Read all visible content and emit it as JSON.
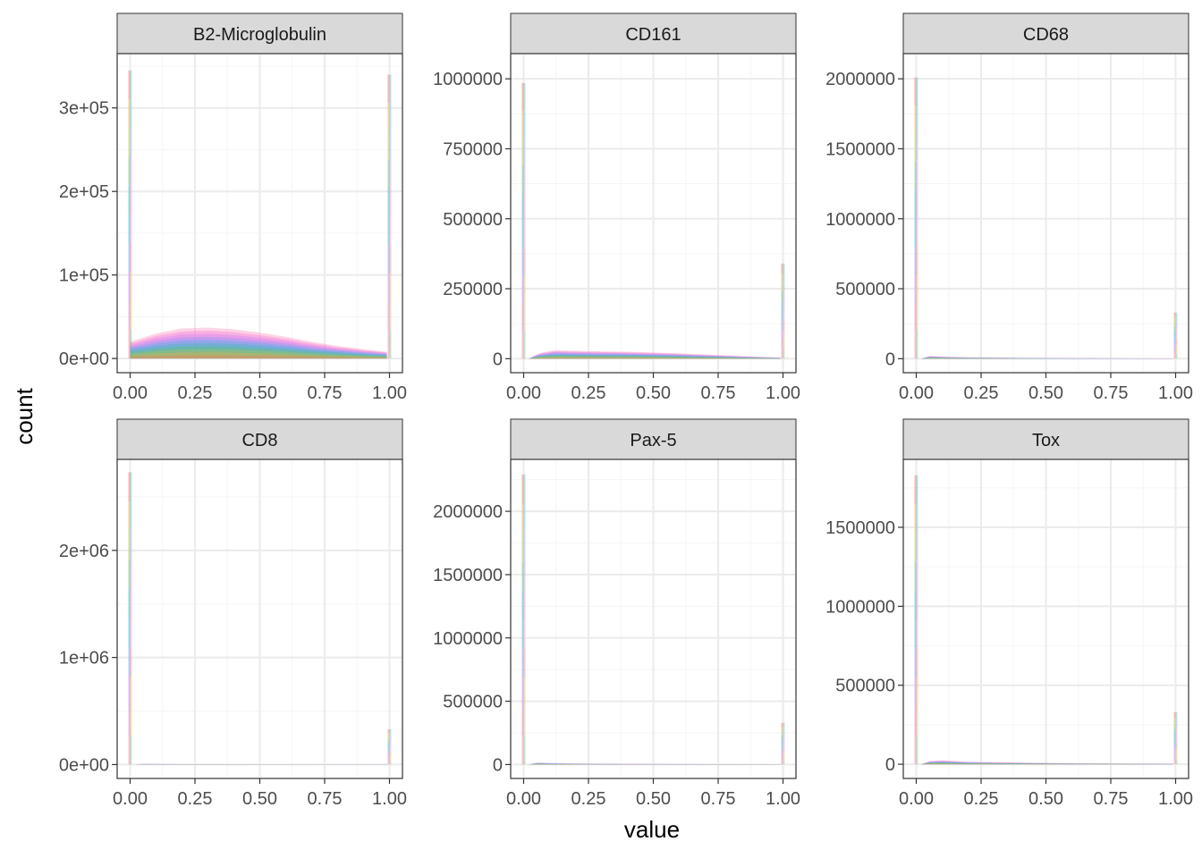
{
  "figure": {
    "xlabel": "value",
    "ylabel": "count"
  },
  "colors": {
    "strip_fill": "#D9D9D9",
    "panel_border": "#333333",
    "grid_major": "#EBEBEB",
    "grid_minor": "#F5F5F5",
    "tick_text": "#4D4D4D",
    "series": [
      "#F8766D",
      "#E7A93C",
      "#B6C24A",
      "#5DC863",
      "#36C0AE",
      "#38B6E6",
      "#7F9BF7",
      "#C77CFF",
      "#F271D0",
      "#FF82B8"
    ]
  },
  "chart_data": [
    {
      "type": "area",
      "title": "B2-Microglobulin",
      "xlim": [
        -0.05,
        1.05
      ],
      "ylim": [
        -17000,
        365000
      ],
      "x_ticks": [
        "0.00",
        "0.25",
        "0.50",
        "0.75",
        "1.00"
      ],
      "y_ticks": [
        {
          "value": 0,
          "label": "0e+00"
        },
        {
          "value": 100000,
          "label": "1e+05"
        },
        {
          "value": 200000,
          "label": "2e+05"
        },
        {
          "value": 300000,
          "label": "3e+05"
        }
      ],
      "spike_left": 345000,
      "spike_right": 340000,
      "stack_total": [
        [
          0.0,
          20000
        ],
        [
          0.1,
          30000
        ],
        [
          0.2,
          36000
        ],
        [
          0.3,
          37000
        ],
        [
          0.4,
          35000
        ],
        [
          0.5,
          31000
        ],
        [
          0.6,
          26000
        ],
        [
          0.7,
          20000
        ],
        [
          0.8,
          15000
        ],
        [
          0.9,
          11000
        ],
        [
          0.99,
          8000
        ]
      ]
    },
    {
      "type": "area",
      "title": "CD161",
      "xlim": [
        -0.05,
        1.05
      ],
      "ylim": [
        -50000,
        1090000
      ],
      "x_ticks": [
        "0.00",
        "0.25",
        "0.50",
        "0.75",
        "1.00"
      ],
      "y_ticks": [
        {
          "value": 0,
          "label": "0"
        },
        {
          "value": 250000,
          "label": "250000"
        },
        {
          "value": 500000,
          "label": "500000"
        },
        {
          "value": 750000,
          "label": "750000"
        },
        {
          "value": 1000000,
          "label": "1000000"
        }
      ],
      "spike_left": 985000,
      "spike_right": 340000,
      "stack_total": [
        [
          0.02,
          0
        ],
        [
          0.06,
          20000
        ],
        [
          0.12,
          30000
        ],
        [
          0.25,
          27000
        ],
        [
          0.4,
          25000
        ],
        [
          0.55,
          21000
        ],
        [
          0.7,
          15000
        ],
        [
          0.85,
          9000
        ],
        [
          0.99,
          4000
        ]
      ]
    },
    {
      "type": "area",
      "title": "CD68",
      "xlim": [
        -0.05,
        1.05
      ],
      "ylim": [
        -100000,
        2180000
      ],
      "x_ticks": [
        "0.00",
        "0.25",
        "0.50",
        "0.75",
        "1.00"
      ],
      "y_ticks": [
        {
          "value": 0,
          "label": "0"
        },
        {
          "value": 500000,
          "label": "500000"
        },
        {
          "value": 1000000,
          "label": "1000000"
        },
        {
          "value": 1500000,
          "label": "1500000"
        },
        {
          "value": 2000000,
          "label": "2000000"
        }
      ],
      "spike_left": 2010000,
      "spike_right": 330000,
      "stack_total": [
        [
          0.02,
          0
        ],
        [
          0.05,
          20000
        ],
        [
          0.1,
          15000
        ],
        [
          0.2,
          10000
        ],
        [
          0.4,
          6000
        ],
        [
          0.6,
          4000
        ],
        [
          0.8,
          3000
        ],
        [
          0.99,
          2000
        ]
      ]
    },
    {
      "type": "area",
      "title": "CD8",
      "xlim": [
        -0.05,
        1.05
      ],
      "ylim": [
        -130000,
        2850000
      ],
      "x_ticks": [
        "0.00",
        "0.25",
        "0.50",
        "0.75",
        "1.00"
      ],
      "y_ticks": [
        {
          "value": 0,
          "label": "0e+00"
        },
        {
          "value": 1000000,
          "label": "1e+06"
        },
        {
          "value": 2000000,
          "label": "2e+06"
        }
      ],
      "spike_left": 2730000,
      "spike_right": 330000,
      "stack_total": [
        [
          0.02,
          0
        ],
        [
          0.05,
          6000
        ],
        [
          0.2,
          4000
        ],
        [
          0.5,
          3000
        ],
        [
          0.8,
          2000
        ],
        [
          0.99,
          2000
        ]
      ]
    },
    {
      "type": "area",
      "title": "Pax-5",
      "xlim": [
        -0.05,
        1.05
      ],
      "ylim": [
        -110000,
        2410000
      ],
      "x_ticks": [
        "0.00",
        "0.25",
        "0.50",
        "0.75",
        "1.00"
      ],
      "y_ticks": [
        {
          "value": 0,
          "label": "0"
        },
        {
          "value": 500000,
          "label": "500000"
        },
        {
          "value": 1000000,
          "label": "1000000"
        },
        {
          "value": 1500000,
          "label": "1500000"
        },
        {
          "value": 2000000,
          "label": "2000000"
        }
      ],
      "spike_left": 2290000,
      "spike_right": 330000,
      "stack_total": [
        [
          0.02,
          0
        ],
        [
          0.05,
          15000
        ],
        [
          0.1,
          12000
        ],
        [
          0.2,
          8000
        ],
        [
          0.4,
          5000
        ],
        [
          0.6,
          4000
        ],
        [
          0.8,
          3000
        ],
        [
          0.99,
          2000
        ]
      ]
    },
    {
      "type": "area",
      "title": "Tox",
      "xlim": [
        -0.05,
        1.05
      ],
      "ylim": [
        -90000,
        1930000
      ],
      "x_ticks": [
        "0.00",
        "0.25",
        "0.50",
        "0.75",
        "1.00"
      ],
      "y_ticks": [
        {
          "value": 0,
          "label": "0"
        },
        {
          "value": 500000,
          "label": "500000"
        },
        {
          "value": 1000000,
          "label": "1000000"
        },
        {
          "value": 1500000,
          "label": "1500000"
        }
      ],
      "spike_left": 1830000,
      "spike_right": 330000,
      "stack_total": [
        [
          0.02,
          0
        ],
        [
          0.05,
          20000
        ],
        [
          0.1,
          25000
        ],
        [
          0.2,
          15000
        ],
        [
          0.4,
          10000
        ],
        [
          0.6,
          6000
        ],
        [
          0.8,
          4000
        ],
        [
          0.99,
          2000
        ]
      ]
    }
  ]
}
